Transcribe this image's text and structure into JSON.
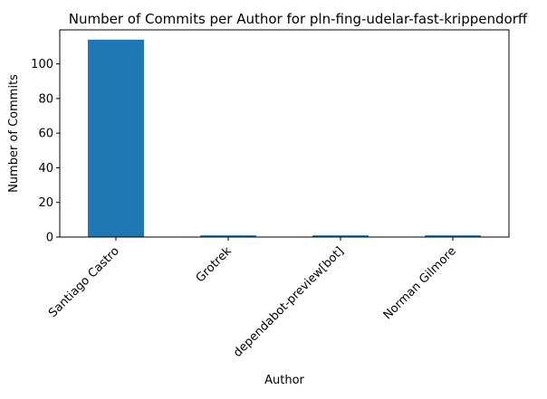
{
  "chart_data": {
    "type": "bar",
    "title": "Number of Commits per Author for pln-fing-udelar-fast-krippendorff",
    "xlabel": "Author",
    "ylabel": "Number of Commits",
    "categories": [
      "Santiago Castro",
      "Grotrek",
      "dependabot-preview[bot]",
      "Norman Gilmore"
    ],
    "values": [
      114,
      1,
      1,
      1
    ],
    "ylim": [
      0,
      119.65
    ],
    "yticks": [
      0,
      20,
      40,
      60,
      80,
      100
    ],
    "bar_color": "#1f77b4",
    "grid": false,
    "legend": "none"
  }
}
